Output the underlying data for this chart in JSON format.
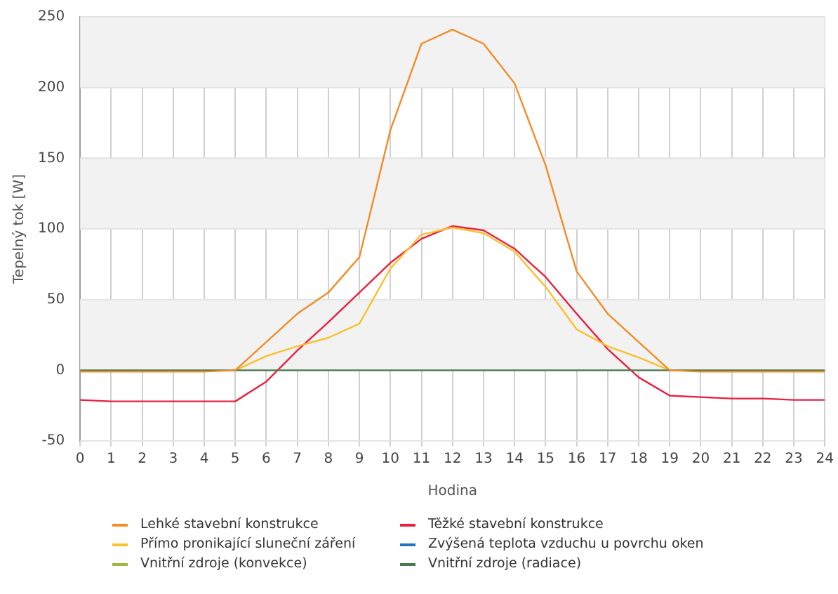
{
  "chart_data": {
    "type": "line",
    "xlabel": "Hodina",
    "ylabel": "Tepelný tok [W]",
    "x": [
      0,
      1,
      2,
      3,
      4,
      5,
      6,
      7,
      8,
      9,
      10,
      11,
      12,
      13,
      14,
      15,
      16,
      17,
      18,
      19,
      20,
      21,
      22,
      23,
      24
    ],
    "xlim": [
      0,
      24
    ],
    "xticks": [
      0,
      1,
      2,
      3,
      4,
      5,
      6,
      7,
      8,
      9,
      10,
      11,
      12,
      13,
      14,
      15,
      16,
      17,
      18,
      19,
      20,
      21,
      22,
      23,
      24
    ],
    "ylim": [
      -50,
      250
    ],
    "yticks": [
      -50,
      0,
      50,
      100,
      150,
      200,
      250
    ],
    "grid": true,
    "legend": "bottom",
    "marker": "none",
    "line_style": "solid",
    "series": [
      {
        "name": "Lehké stavební konstrukce",
        "color": "#f28c28",
        "values": [
          -1,
          -1,
          -1,
          -1,
          -1,
          0,
          20,
          40,
          55,
          80,
          170,
          231,
          241,
          231,
          203,
          145,
          70,
          40,
          20,
          0,
          -1,
          -1,
          -1,
          -1,
          -1
        ]
      },
      {
        "name": "Těžké stavební konstrukce",
        "color": "#e8203f",
        "values": [
          -21,
          -22,
          -22,
          -22,
          -22,
          -22,
          -8,
          14,
          34,
          55,
          76,
          93,
          102,
          99,
          86,
          66,
          40,
          15,
          -5,
          -18,
          -19,
          -20,
          -20,
          -21,
          -21
        ]
      },
      {
        "name": "Přímo pronikající sluneční záření",
        "color": "#fbc02d",
        "values": [
          null,
          null,
          null,
          null,
          null,
          0,
          10,
          17,
          23,
          33,
          72,
          96,
          101,
          97,
          84,
          59,
          29,
          17,
          9,
          0,
          null,
          null,
          null,
          null,
          null
        ]
      },
      {
        "name": "Zvýšená teplota vzduchu u povrchu oken",
        "color": "#1f77c4",
        "values": [
          null,
          null,
          null,
          null,
          null,
          null,
          null,
          null,
          null,
          null,
          null,
          null,
          null,
          null,
          null,
          null,
          null,
          null,
          null,
          null,
          null,
          null,
          null,
          null,
          null
        ]
      },
      {
        "name": "Vnitřní zdroje (konvekce)",
        "color": "#9bbb3b",
        "values": [
          null,
          null,
          null,
          null,
          null,
          null,
          null,
          null,
          null,
          null,
          null,
          null,
          null,
          null,
          null,
          null,
          null,
          null,
          null,
          null,
          null,
          null,
          null,
          null,
          null
        ]
      },
      {
        "name": "Vnitřní zdroje (radiace)",
        "color": "#4a7a4a",
        "values": [
          0,
          0,
          0,
          0,
          0,
          0,
          0,
          0,
          0,
          0,
          0,
          0,
          0,
          0,
          0,
          0,
          0,
          0,
          0,
          0,
          0,
          0,
          0,
          0,
          0
        ]
      }
    ]
  }
}
